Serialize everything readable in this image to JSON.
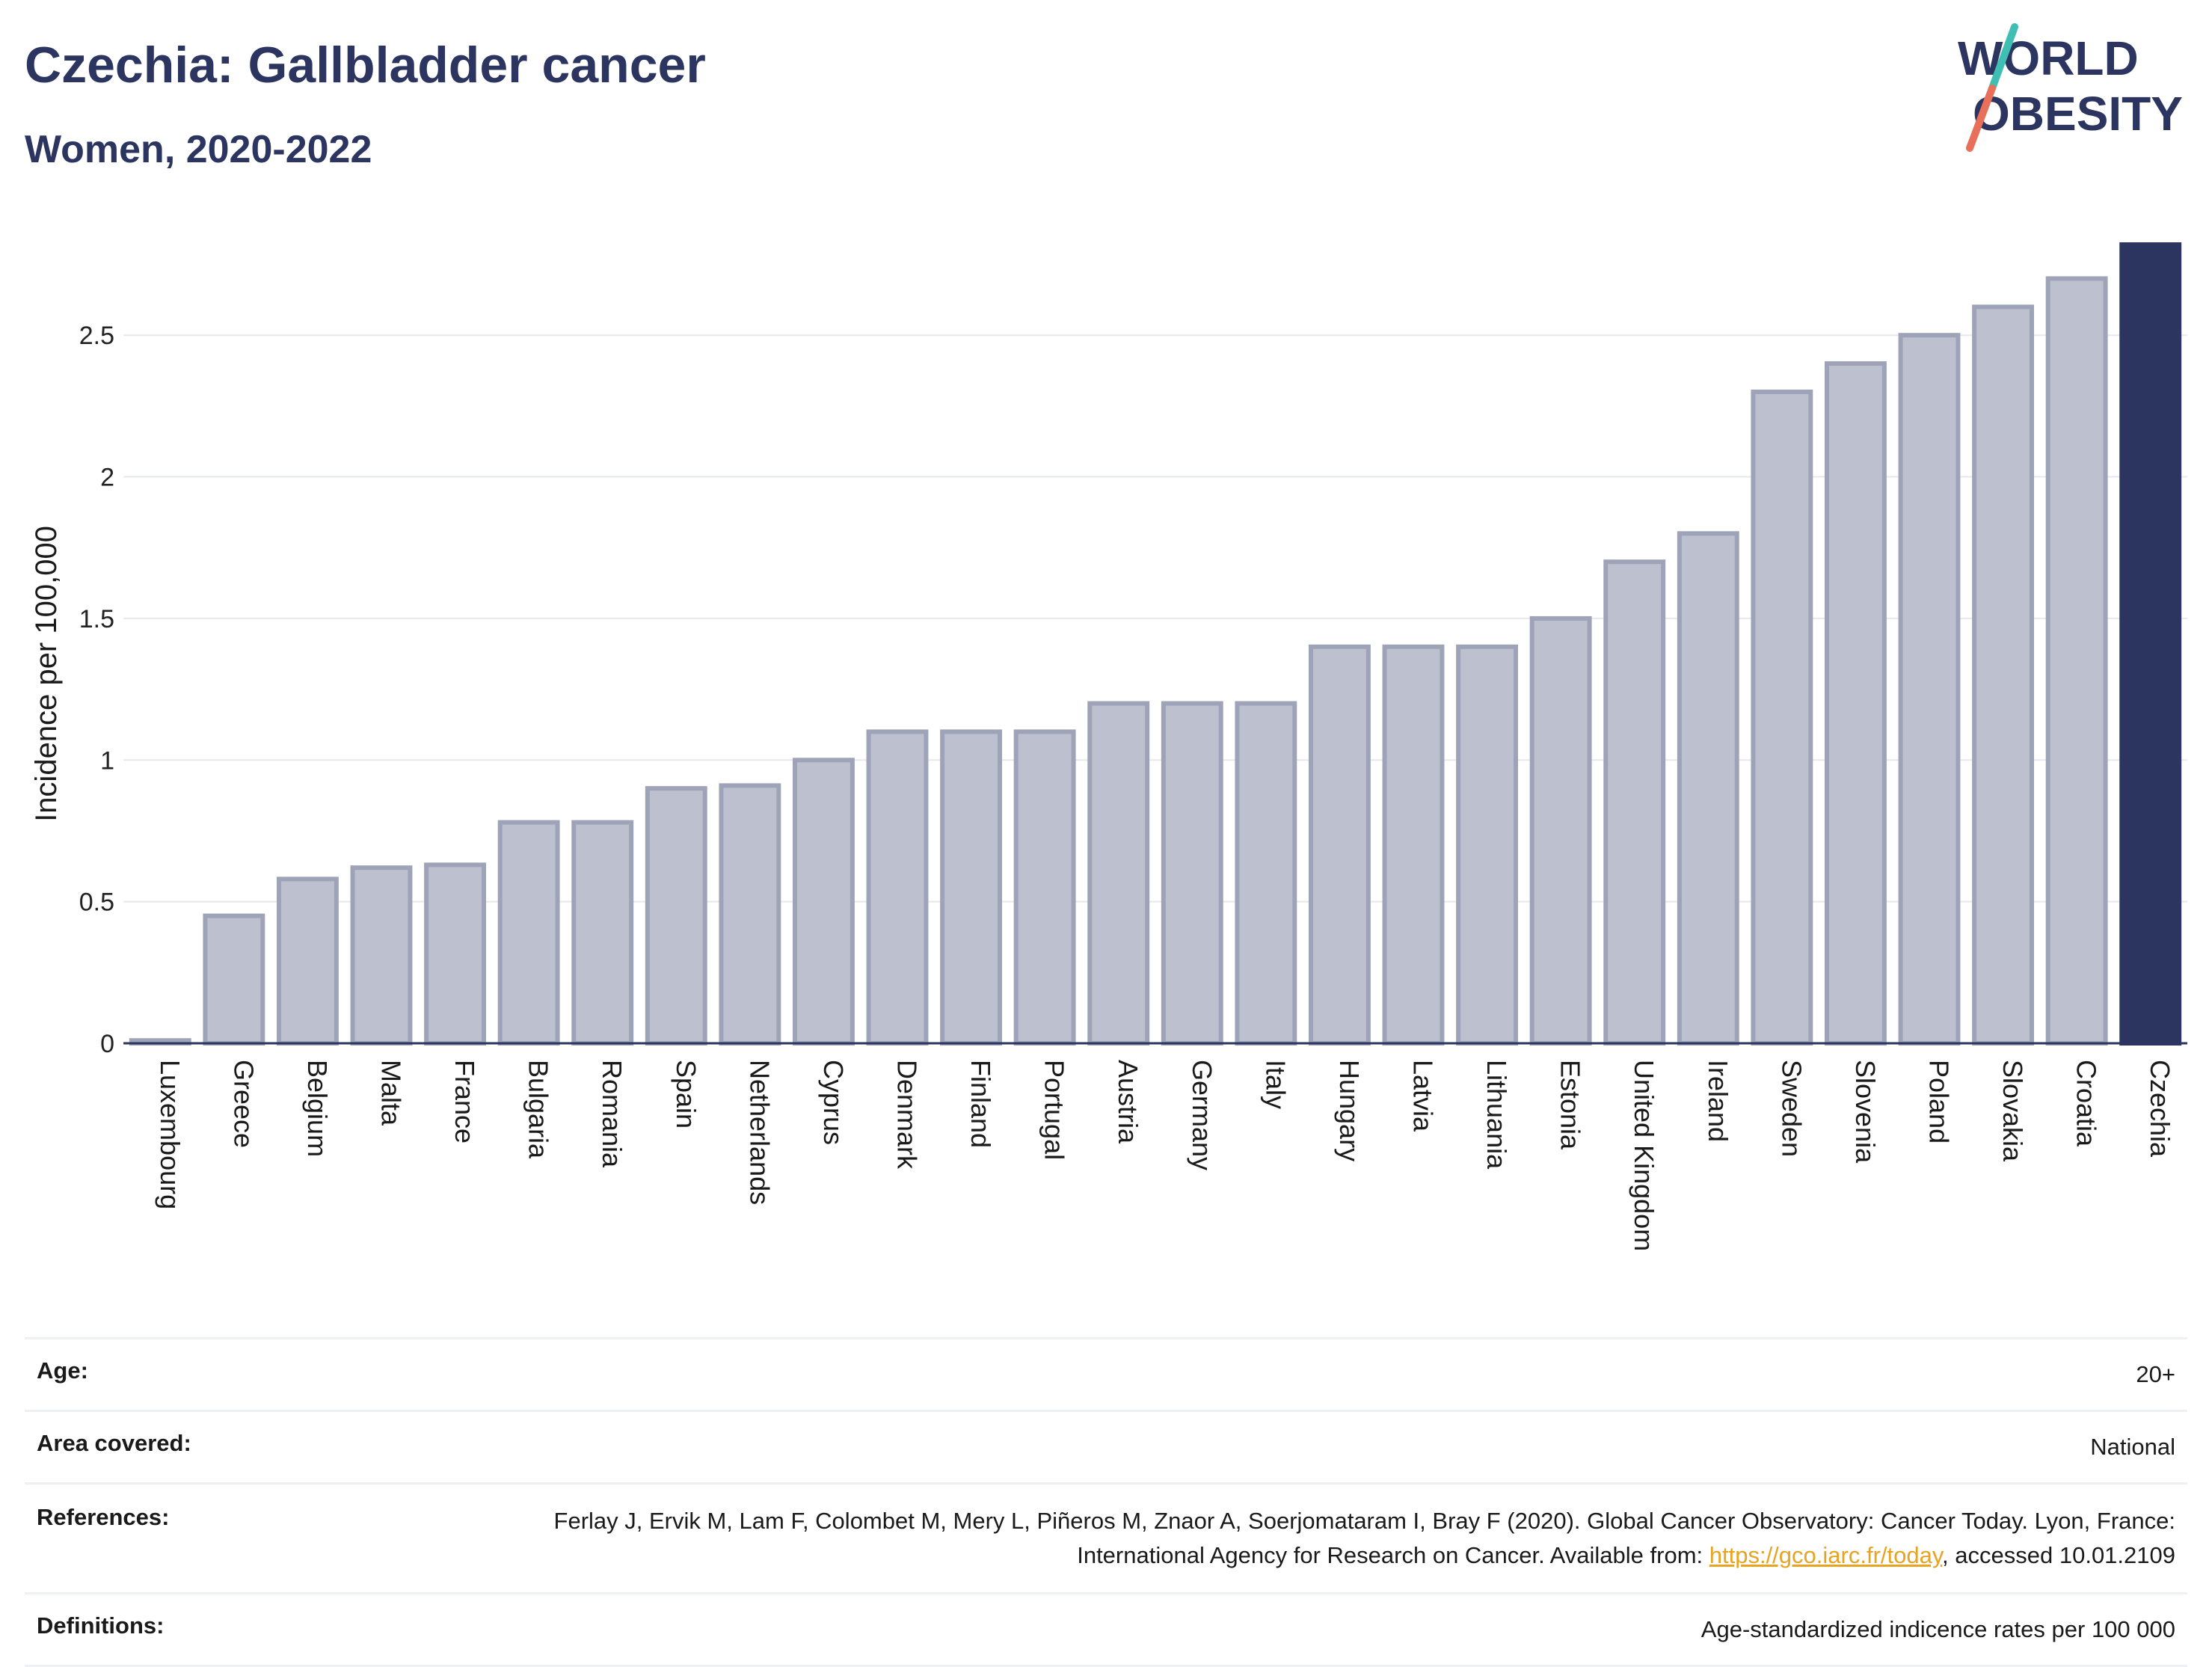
{
  "header": {
    "title": "Czechia: Gallbladder cancer",
    "subtitle": "Women, 2020-2022"
  },
  "logo": {
    "line1": "WORLD",
    "line2": "OBESITY"
  },
  "chart_data": {
    "type": "bar",
    "title": "Czechia: Gallbladder cancer",
    "subtitle": "Women, 2020-2022",
    "ylabel": "Incidence per 100,000",
    "xlabel": "",
    "ylim": [
      0,
      2.82
    ],
    "yticks": [
      0,
      0.5,
      1,
      1.5,
      2,
      2.5
    ],
    "ytick_labels": [
      "0",
      "0.5",
      "1",
      "1.5",
      "2",
      "2.5"
    ],
    "grid": true,
    "highlight": "Czechia",
    "colors": {
      "bar": "#bcc0cf",
      "bar_edge": "#9ea3b8",
      "highlight": "#2b3560",
      "grid": "#e6e8ee",
      "axis": "#2b3560"
    },
    "categories": [
      "Luxembourg",
      "Greece",
      "Belgium",
      "Malta",
      "France",
      "Bulgaria",
      "Romania",
      "Spain",
      "Netherlands",
      "Cyprus",
      "Denmark",
      "Finland",
      "Portugal",
      "Austria",
      "Germany",
      "Italy",
      "Hungary",
      "Latvia",
      "Lithuania",
      "Estonia",
      "United Kingdom",
      "Ireland",
      "Sweden",
      "Slovenia",
      "Poland",
      "Slovakia",
      "Croatia",
      "Czechia"
    ],
    "values": [
      0.01,
      0.45,
      0.58,
      0.62,
      0.63,
      0.78,
      0.78,
      0.9,
      0.91,
      1.0,
      1.1,
      1.1,
      1.1,
      1.2,
      1.2,
      1.2,
      1.4,
      1.4,
      1.4,
      1.5,
      1.7,
      1.8,
      2.3,
      2.4,
      2.5,
      2.6,
      2.7,
      2.82
    ]
  },
  "info": {
    "age_label": "Age:",
    "age_value": "20+",
    "area_label": "Area covered:",
    "area_value": "National",
    "references_label": "References:",
    "references_text_1": "Ferlay J, Ervik M, Lam F, Colombet M, Mery L, Piñeros M, Znaor A, Soerjomataram I, Bray F (2020). Global Cancer Observatory: Cancer Today. Lyon, France: International Agency for Research on Cancer. Available from: ",
    "references_link": "https://gco.iarc.fr/today",
    "references_text_2": ", accessed 10.01.2109",
    "definitions_label": "Definitions:",
    "definitions_value": "Age-standardized indicence rates per 100 000"
  }
}
